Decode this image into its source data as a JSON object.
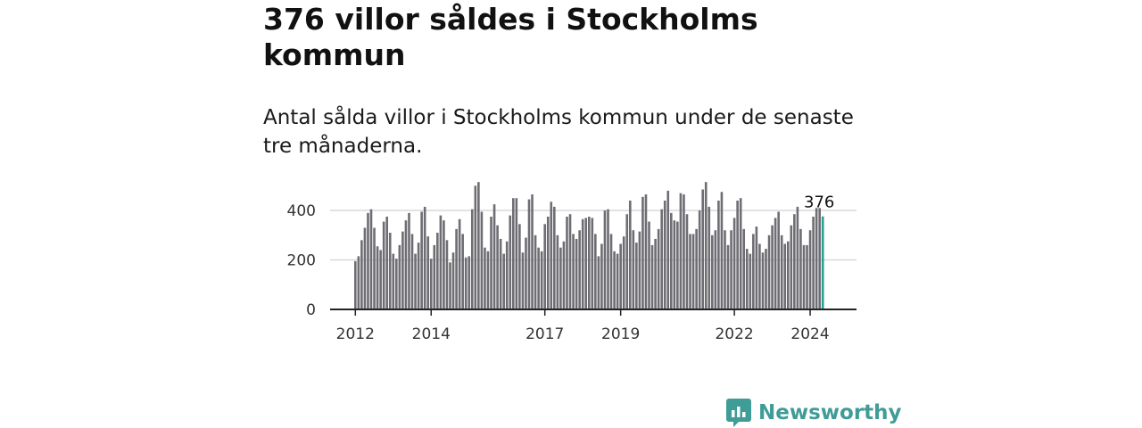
{
  "title": "376 villor såldes i Stockholms kommun",
  "subtitle": "Antal sålda villor i Stockholms kommun under de senaste tre månaderna.",
  "brand": {
    "name": "Newsworthy",
    "color": "#3f9c96"
  },
  "colors": {
    "bar": "#6e6d73",
    "highlight": "#2a9d93",
    "grid": "#d8d8d8",
    "axis": "#222222"
  },
  "chart_data": {
    "type": "bar",
    "title": "",
    "xlabel": "",
    "ylabel": "",
    "ylim": [
      0,
      530
    ],
    "yticks": [
      0,
      200,
      400
    ],
    "start": {
      "year": 2012,
      "month": 1
    },
    "xtick_labels": [
      "2012",
      "2014",
      "2017",
      "2019",
      "2022",
      "2024"
    ],
    "highlight_label": "376",
    "values": [
      195,
      215,
      280,
      330,
      390,
      405,
      330,
      255,
      240,
      355,
      375,
      310,
      225,
      205,
      260,
      315,
      360,
      390,
      305,
      225,
      270,
      395,
      415,
      295,
      205,
      260,
      310,
      380,
      360,
      280,
      190,
      230,
      325,
      365,
      305,
      210,
      215,
      405,
      500,
      515,
      395,
      250,
      235,
      375,
      425,
      340,
      285,
      225,
      275,
      380,
      450,
      450,
      345,
      230,
      290,
      445,
      465,
      300,
      250,
      235,
      345,
      375,
      435,
      415,
      300,
      250,
      275,
      375,
      385,
      305,
      285,
      320,
      365,
      370,
      375,
      370,
      305,
      215,
      265,
      400,
      405,
      305,
      235,
      225,
      265,
      295,
      385,
      440,
      320,
      270,
      315,
      455,
      465,
      355,
      260,
      285,
      325,
      405,
      440,
      480,
      390,
      360,
      355,
      470,
      465,
      385,
      305,
      305,
      325,
      400,
      485,
      515,
      415,
      300,
      320,
      440,
      475,
      320,
      260,
      320,
      370,
      440,
      450,
      325,
      245,
      225,
      305,
      335,
      265,
      230,
      245,
      300,
      340,
      370,
      395,
      300,
      265,
      275,
      340,
      385,
      415,
      325,
      260,
      260,
      320,
      375,
      410,
      410,
      376
    ]
  }
}
